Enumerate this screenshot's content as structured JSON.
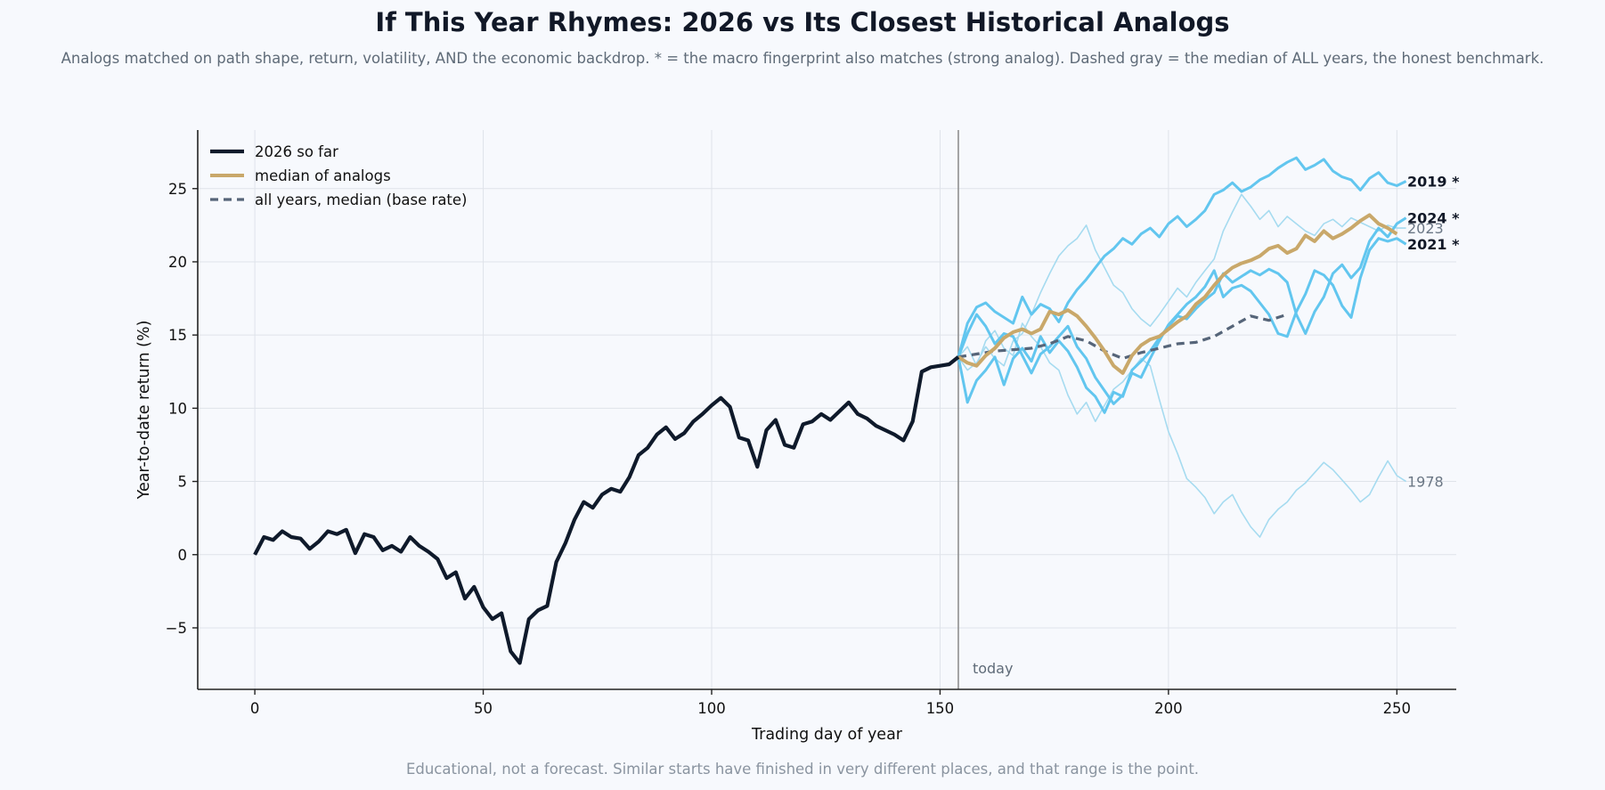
{
  "title": "If This Year Rhymes: 2026 vs Its Closest Historical Analogs",
  "subtitle": "Analogs matched on path shape, return, volatility, AND the economic backdrop. * = the macro fingerprint also matches (strong analog). Dashed gray = the median of ALL years, the honest benchmark.",
  "footnote": "Educational, not a forecast. Similar starts have finished in very different places, and that range is the point.",
  "chart_data": {
    "type": "line",
    "xlabel": "Trading day of year",
    "ylabel": "Year-to-date return (%)",
    "xlim": [
      -12.5,
      263
    ],
    "ylim": [
      -9.2,
      29.0
    ],
    "xticks": [
      0,
      50,
      100,
      150,
      200,
      250
    ],
    "yticks": [
      -5,
      0,
      5,
      10,
      15,
      20,
      25
    ],
    "grid": true,
    "legend_position": "top-left",
    "today_day": 154,
    "today_label": "today",
    "colors": {
      "current": "#0f1a2b",
      "analog_strong": "#62c6ef",
      "analog_weak": "#a6dbf0",
      "median_analogs": "#c9a86a",
      "base_rate": "#566579",
      "today_line": "#8f8f8f",
      "grid": "#dfe3ea"
    },
    "legend": [
      {
        "label": "2026 so far",
        "style": "current"
      },
      {
        "label": "median of analogs",
        "style": "median"
      },
      {
        "label": "all years, median (base rate)",
        "style": "base"
      }
    ],
    "current": {
      "name": "2026 so far",
      "x": [
        0,
        2,
        4,
        6,
        8,
        10,
        12,
        14,
        16,
        18,
        20,
        22,
        24,
        26,
        28,
        30,
        32,
        34,
        36,
        38,
        40,
        42,
        44,
        46,
        48,
        50,
        52,
        54,
        56,
        58,
        60,
        62,
        64,
        66,
        68,
        70,
        72,
        74,
        76,
        78,
        80,
        82,
        84,
        86,
        88,
        90,
        92,
        94,
        96,
        98,
        100,
        102,
        104,
        106,
        108,
        110,
        112,
        114,
        116,
        118,
        120,
        122,
        124,
        126,
        128,
        130,
        132,
        134,
        136,
        138,
        140,
        142,
        144,
        146,
        148,
        150,
        152,
        154
      ],
      "y": [
        0,
        1.2,
        1.0,
        1.6,
        1.2,
        1.1,
        0.4,
        0.9,
        1.6,
        1.4,
        1.7,
        0.1,
        1.4,
        1.2,
        0.3,
        0.6,
        0.2,
        1.2,
        0.6,
        0.2,
        -0.3,
        -1.6,
        -1.2,
        -3.0,
        -2.2,
        -3.6,
        -4.4,
        -4.0,
        -6.6,
        -7.4,
        -4.4,
        -3.8,
        -3.5,
        -0.5,
        0.8,
        2.4,
        3.6,
        3.2,
        4.1,
        4.5,
        4.3,
        5.3,
        6.8,
        7.3,
        8.2,
        8.7,
        7.9,
        8.3,
        9.1,
        9.6,
        10.2,
        10.7,
        10.1,
        8.0,
        7.8,
        6.0,
        8.5,
        9.2,
        7.5,
        7.3,
        8.9,
        9.1,
        9.6,
        9.2,
        9.8,
        10.4,
        9.6,
        9.3,
        8.8,
        8.5,
        8.2,
        7.8,
        9.1,
        12.5,
        12.8,
        12.9,
        13.0,
        13.5
      ]
    },
    "analogs": [
      {
        "name": "2019 *",
        "strong": true,
        "x": [
          154,
          156,
          158,
          160,
          162,
          164,
          166,
          168,
          170,
          172,
          174,
          176,
          178,
          180,
          182,
          184,
          186,
          188,
          190,
          192,
          194,
          196,
          198,
          200,
          202,
          204,
          206,
          208,
          210,
          212,
          214,
          216,
          218,
          220,
          222,
          224,
          226,
          228,
          230,
          232,
          234,
          236,
          238,
          240,
          242,
          244,
          246,
          248,
          250,
          252
        ],
        "y": [
          13.5,
          15.8,
          16.9,
          17.2,
          16.6,
          16.2,
          15.8,
          17.6,
          16.4,
          17.1,
          16.8,
          15.9,
          17.2,
          18.1,
          18.8,
          19.6,
          20.4,
          20.9,
          21.6,
          21.2,
          21.9,
          22.3,
          21.7,
          22.6,
          23.1,
          22.4,
          22.9,
          23.5,
          24.6,
          24.9,
          25.4,
          24.8,
          25.1,
          25.6,
          25.9,
          26.4,
          26.8,
          27.1,
          26.3,
          26.6,
          27.0,
          26.2,
          25.8,
          25.6,
          24.9,
          25.7,
          26.1,
          25.4,
          25.2,
          25.5
        ]
      },
      {
        "name": "2024 *",
        "strong": true,
        "x": [
          154,
          156,
          158,
          160,
          162,
          164,
          166,
          168,
          170,
          172,
          174,
          176,
          178,
          180,
          182,
          184,
          186,
          188,
          190,
          192,
          194,
          196,
          198,
          200,
          202,
          204,
          206,
          208,
          210,
          212,
          214,
          216,
          218,
          220,
          222,
          224,
          226,
          228,
          230,
          232,
          234,
          236,
          238,
          240,
          242,
          244,
          246,
          248,
          250,
          252
        ],
        "y": [
          13.5,
          10.4,
          11.9,
          12.6,
          13.5,
          11.6,
          13.4,
          14.1,
          13.2,
          14.9,
          13.8,
          14.6,
          13.9,
          12.8,
          11.4,
          10.8,
          9.7,
          11.1,
          10.8,
          12.6,
          13.2,
          13.9,
          14.8,
          15.6,
          16.3,
          16.1,
          16.8,
          17.4,
          17.9,
          19.2,
          18.6,
          19.0,
          19.4,
          19.1,
          19.5,
          19.2,
          18.6,
          16.4,
          15.1,
          16.6,
          17.6,
          19.2,
          19.8,
          18.9,
          19.6,
          21.4,
          22.3,
          21.7,
          22.6,
          23.0
        ]
      },
      {
        "name": "2021 *",
        "strong": true,
        "x": [
          154,
          156,
          158,
          160,
          162,
          164,
          166,
          168,
          170,
          172,
          174,
          176,
          178,
          180,
          182,
          184,
          186,
          188,
          190,
          192,
          194,
          196,
          198,
          200,
          202,
          204,
          206,
          208,
          210,
          212,
          214,
          216,
          218,
          220,
          222,
          224,
          226,
          228,
          230,
          232,
          234,
          236,
          238,
          240,
          242,
          244,
          246,
          248,
          250,
          252
        ],
        "y": [
          13.5,
          15.1,
          16.4,
          15.6,
          14.4,
          15.1,
          14.9,
          13.6,
          12.4,
          13.7,
          14.2,
          14.9,
          15.6,
          14.2,
          13.4,
          12.1,
          11.2,
          10.3,
          10.9,
          12.4,
          12.1,
          13.4,
          14.6,
          15.7,
          16.4,
          17.1,
          17.6,
          18.3,
          19.4,
          17.6,
          18.2,
          18.4,
          18.0,
          17.2,
          16.4,
          15.1,
          14.9,
          16.6,
          17.8,
          19.4,
          19.1,
          18.4,
          17.0,
          16.2,
          18.9,
          20.8,
          21.6,
          21.4,
          21.6,
          21.2
        ]
      },
      {
        "name": "2023",
        "strong": false,
        "x": [
          154,
          156,
          158,
          160,
          162,
          164,
          166,
          168,
          170,
          172,
          174,
          176,
          178,
          180,
          182,
          184,
          186,
          188,
          190,
          192,
          194,
          196,
          198,
          200,
          202,
          204,
          206,
          208,
          210,
          212,
          214,
          216,
          218,
          220,
          222,
          224,
          226,
          228,
          230,
          232,
          234,
          236,
          238,
          240,
          242,
          244,
          246,
          248,
          250,
          252
        ],
        "y": [
          13.5,
          12.6,
          13.1,
          14.2,
          13.4,
          12.9,
          14.6,
          15.1,
          16.4,
          17.9,
          19.2,
          20.4,
          21.1,
          21.6,
          22.5,
          20.8,
          19.6,
          18.4,
          17.9,
          16.8,
          16.1,
          15.6,
          16.4,
          17.3,
          18.2,
          17.6,
          18.6,
          19.4,
          20.2,
          22.1,
          23.4,
          24.6,
          23.8,
          22.9,
          23.5,
          22.4,
          23.1,
          22.6,
          22.1,
          21.8,
          22.6,
          22.9,
          22.4,
          23.0,
          22.7,
          22.4,
          22.1,
          22.5,
          22.3,
          22.3
        ]
      },
      {
        "name": "1978",
        "strong": false,
        "x": [
          154,
          156,
          158,
          160,
          162,
          164,
          166,
          168,
          170,
          172,
          174,
          176,
          178,
          180,
          182,
          184,
          186,
          188,
          190,
          192,
          194,
          196,
          198,
          200,
          202,
          204,
          206,
          208,
          210,
          212,
          214,
          216,
          218,
          220,
          222,
          224,
          226,
          228,
          230,
          232,
          234,
          236,
          238,
          240,
          242,
          244,
          246,
          248,
          250,
          252
        ],
        "y": [
          13.5,
          14.2,
          12.9,
          14.6,
          15.3,
          14.1,
          13.6,
          15.8,
          14.9,
          14.2,
          13.1,
          12.6,
          10.9,
          9.6,
          10.4,
          9.1,
          10.2,
          11.3,
          11.8,
          12.6,
          13.4,
          12.9,
          10.6,
          8.4,
          6.9,
          5.2,
          4.6,
          3.9,
          2.8,
          3.6,
          4.1,
          2.9,
          1.9,
          1.2,
          2.4,
          3.1,
          3.6,
          4.4,
          4.9,
          5.6,
          6.3,
          5.8,
          5.1,
          4.4,
          3.6,
          4.1,
          5.3,
          6.4,
          5.4,
          5.0
        ]
      }
    ],
    "median_analogs": {
      "name": "median of analogs",
      "x": [
        154,
        156,
        158,
        160,
        162,
        164,
        166,
        168,
        170,
        172,
        174,
        176,
        178,
        180,
        182,
        184,
        186,
        188,
        190,
        192,
        194,
        196,
        198,
        200,
        202,
        204,
        206,
        208,
        210,
        212,
        214,
        216,
        218,
        220,
        222,
        224,
        226,
        228,
        230,
        232,
        234,
        236,
        238,
        240,
        242,
        244,
        246,
        248,
        250
      ],
      "y": [
        13.5,
        13.1,
        12.9,
        13.6,
        14.1,
        14.8,
        15.2,
        15.4,
        15.1,
        15.4,
        16.6,
        16.4,
        16.7,
        16.3,
        15.6,
        14.8,
        13.9,
        12.9,
        12.4,
        13.6,
        14.3,
        14.7,
        14.9,
        15.4,
        15.9,
        16.3,
        17.1,
        17.6,
        18.4,
        19.1,
        19.6,
        19.9,
        20.1,
        20.4,
        20.9,
        21.1,
        20.6,
        20.9,
        21.8,
        21.4,
        22.1,
        21.6,
        21.9,
        22.3,
        22.8,
        23.2,
        22.6,
        22.3,
        21.9
      ]
    },
    "base_rate": {
      "name": "all years, median (base rate)",
      "x": [
        154,
        158,
        162,
        166,
        170,
        174,
        178,
        182,
        186,
        190,
        194,
        198,
        202,
        206,
        210,
        214,
        218,
        222,
        226
      ],
      "y": [
        13.5,
        13.7,
        13.9,
        14.0,
        14.1,
        14.4,
        14.9,
        14.6,
        13.9,
        13.4,
        13.8,
        14.1,
        14.4,
        14.5,
        14.9,
        15.6,
        16.3,
        16.0,
        16.4
      ]
    }
  }
}
